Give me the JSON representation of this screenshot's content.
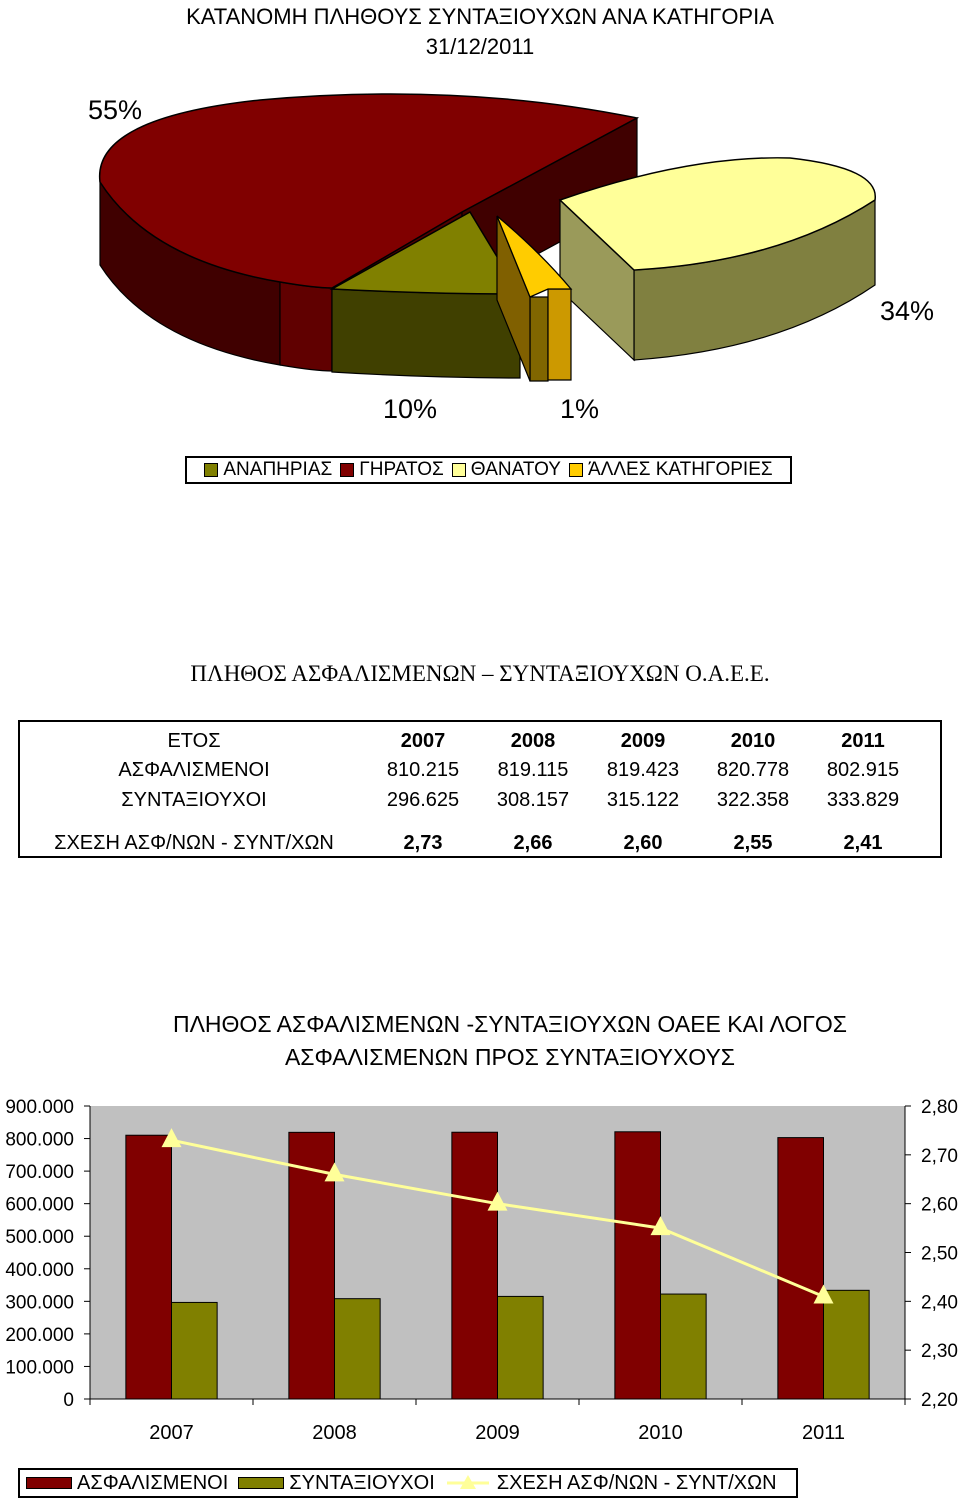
{
  "pie_chart": {
    "title_line1": "ΚΑΤΑΝΟΜΗ ΠΛΗΘΟΥΣ ΣΥΝΤΑΞΙΟΥΧΩΝ ΑΝΑ ΚΑΤΗΓΟΡΙΑ",
    "title_line2": "31/12/2011",
    "labels": {
      "giratos": "55%",
      "thanatou": "34%",
      "anapirias": "10%",
      "alles": "1%"
    },
    "legend": [
      {
        "label": "ΑΝΑΠΗΡΙΑΣ",
        "color": "#808000"
      },
      {
        "label": "ΓΗΡΑΤΟΣ",
        "color": "#800000"
      },
      {
        "label": "ΘΑΝΑΤΟΥ",
        "color": "#FFFF99"
      },
      {
        "label": "ΆΛΛΕΣ ΚΑΤΗΓΟΡΙΕΣ",
        "color": "#FFCC00"
      }
    ]
  },
  "table": {
    "title": "ΠΛΗΘΟΣ ΑΣΦΑΛΙΣΜΕΝΩΝ – ΣΥΝΤΑΞΙΟΥΧΩΝ Ο.Α.Ε.Ε.",
    "header_label": "ΕΤΟΣ",
    "years": [
      "2007",
      "2008",
      "2009",
      "2010",
      "2011"
    ],
    "insured_label": "ΑΣΦΑΛΙΣΜΕΝΟΙ",
    "insured": [
      "810.215",
      "819.115",
      "819.423",
      "820.778",
      "802.915"
    ],
    "pensioners_label": "ΣΥΝΤΑΞΙΟΥΧΟΙ",
    "pensioners": [
      "296.625",
      "308.157",
      "315.122",
      "322.358",
      "333.829"
    ],
    "ratio_label": "ΣΧΕΣΗ ΑΣΦ/ΝΩΝ - ΣΥΝΤ/ΧΩΝ",
    "ratio": [
      "2,73",
      "2,66",
      "2,60",
      "2,55",
      "2,41"
    ]
  },
  "chart_data": [
    {
      "type": "pie",
      "title": "ΚΑΤΑΝΟΜΗ ΠΛΗΘΟΥΣ ΣΥΝΤΑΞΙΟΥΧΩΝ ΑΝΑ ΚΑΤΗΓΟΡΙΑ 31/12/2011",
      "categories": [
        "ΓΗΡΑΤΟΣ",
        "ΘΑΝΑΤΟΥ",
        "ΑΝΑΠΗΡΙΑΣ",
        "ΆΛΛΕΣ ΚΑΤΗΓΟΡΙΕΣ"
      ],
      "values": [
        55,
        34,
        10,
        1
      ],
      "colors": [
        "#800000",
        "#FFFF99",
        "#808000",
        "#FFCC00"
      ],
      "legend_position": "bottom"
    },
    {
      "type": "bar",
      "title": "ΠΛΗΘΟΣ ΑΣΦΑΛΙΣΜΕΝΩΝ -ΣΥΝΤΑΞΙΟΥΧΩΝ ΟΑΕΕ ΚΑΙ ΛΟΓΟΣ ΑΣΦΑΛΙΣΜΕΝΩΝ ΠΡΟΣ ΣΥΝΤΑΞΙΟΥΧΟΥΣ",
      "categories": [
        "2007",
        "2008",
        "2009",
        "2010",
        "2011"
      ],
      "series": [
        {
          "name": "ΑΣΦΑΛΙΣΜΕΝΟΙ",
          "kind": "bar",
          "axis": "left",
          "color": "#800000",
          "values": [
            810215,
            819115,
            819423,
            820778,
            802915
          ]
        },
        {
          "name": "ΣΥΝΤΑΞΙΟΥΧΟΙ",
          "kind": "bar",
          "axis": "left",
          "color": "#808000",
          "values": [
            296625,
            308157,
            315122,
            322358,
            333829
          ]
        },
        {
          "name": "ΣΧΕΣΗ ΑΣΦ/ΝΩΝ - ΣΥΝΤ/ΧΩΝ",
          "kind": "line",
          "axis": "right",
          "color": "#FFFF99",
          "values": [
            2.73,
            2.66,
            2.6,
            2.55,
            2.41
          ]
        }
      ],
      "ylim": [
        0,
        900000
      ],
      "y_ticks": [
        "0",
        "100.000",
        "200.000",
        "300.000",
        "400.000",
        "500.000",
        "600.000",
        "700.000",
        "800.000",
        "900.000"
      ],
      "y2lim": [
        2.2,
        2.8
      ],
      "y2_ticks": [
        "2,20",
        "2,30",
        "2,40",
        "2,50",
        "2,60",
        "2,70",
        "2,80"
      ],
      "plot_background": "#C0C0C0",
      "legend_position": "bottom"
    }
  ]
}
